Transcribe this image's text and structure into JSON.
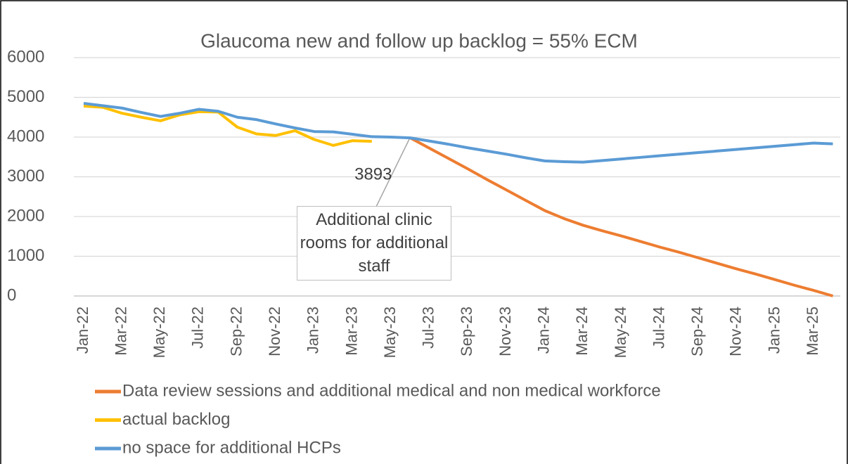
{
  "chart_data": {
    "type": "line",
    "title": "Glaucoma new and follow up backlog = 55% ECM",
    "categories": [
      "Jan-22",
      null,
      "Mar-22",
      null,
      "May-22",
      null,
      "Jul-22",
      null,
      "Sep-22",
      null,
      "Nov-22",
      null,
      "Jan-23",
      null,
      "Mar-23",
      null,
      "May-23",
      null,
      "Jul-23",
      null,
      "Sep-23",
      null,
      "Nov-23",
      null,
      "Jan-24",
      null,
      "Mar-24",
      null,
      "May-24",
      null,
      "Jul-24",
      null,
      "Sep-24",
      null,
      "Nov-24",
      null,
      "Jan-25",
      null,
      "Mar-25",
      null
    ],
    "series": [
      {
        "name": "Data review sessions and additional medical and non medical workforce",
        "color": "#ED7D31",
        "values": [
          null,
          null,
          null,
          null,
          null,
          null,
          null,
          null,
          null,
          null,
          null,
          null,
          null,
          null,
          null,
          null,
          null,
          3980,
          3720,
          3460,
          3200,
          2930,
          2670,
          2410,
          2150,
          1950,
          1780,
          1640,
          1510,
          1370,
          1230,
          1100,
          960,
          820,
          680,
          550,
          410,
          270,
          140,
          0
        ]
      },
      {
        "name": "actual backlog",
        "color": "#FFC000",
        "values": [
          4780,
          4750,
          4600,
          4500,
          4410,
          4560,
          4640,
          4630,
          4250,
          4080,
          4040,
          4160,
          3940,
          3790,
          3910,
          3893,
          null,
          null,
          null,
          null,
          null,
          null,
          null,
          null,
          null,
          null,
          null,
          null,
          null,
          null,
          null,
          null,
          null,
          null,
          null,
          null,
          null,
          null,
          null,
          null
        ]
      },
      {
        "name": "no space for additional HCPs",
        "color": "#5B9BD5",
        "values": [
          4850,
          4790,
          4730,
          4620,
          4520,
          4600,
          4700,
          4650,
          4500,
          4440,
          4330,
          4230,
          4140,
          4130,
          4070,
          4010,
          4000,
          3980,
          3900,
          3820,
          3730,
          3650,
          3570,
          3480,
          3400,
          3380,
          3370,
          3410,
          3450,
          3490,
          3530,
          3570,
          3610,
          3650,
          3690,
          3730,
          3770,
          3810,
          3850,
          3830
        ]
      }
    ],
    "annotation": "Additional clinic rooms for additional staff",
    "ylim": [
      0,
      6000
    ],
    "yticks": [
      0,
      1000,
      2000,
      3000,
      4000,
      5000,
      6000
    ],
    "grid": true,
    "legend": "bottom"
  }
}
